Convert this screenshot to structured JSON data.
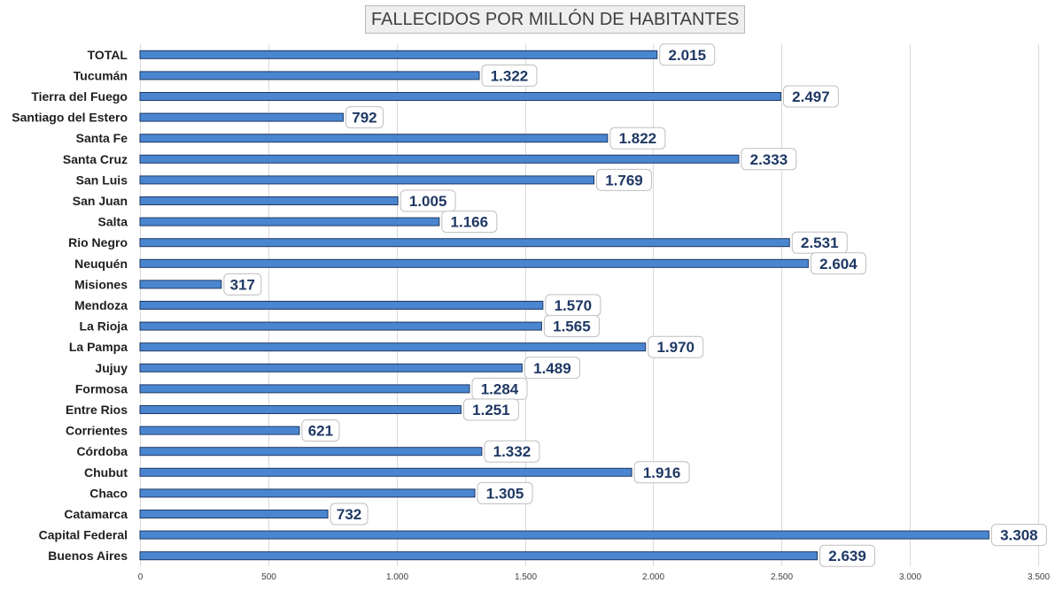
{
  "chart_data": {
    "type": "bar",
    "orientation": "horizontal",
    "title": "FALLECIDOS POR MILLÓN DE HABITANTES",
    "categories": [
      "TOTAL",
      "Tucumán",
      "Tierra del Fuego",
      "Santiago del Estero",
      "Santa Fe",
      "Santa Cruz",
      "San Luis",
      "San Juan",
      "Salta",
      "Rio Negro",
      "Neuquén",
      "Misiones",
      "Mendoza",
      "La Rioja",
      "La Pampa",
      "Jujuy",
      "Formosa",
      "Entre Rios",
      "Corrientes",
      "Córdoba",
      "Chubut",
      "Chaco",
      "Catamarca",
      "Capital Federal",
      "Buenos Aires"
    ],
    "values": [
      2015,
      1322,
      2497,
      792,
      1822,
      2333,
      1769,
      1005,
      1166,
      2531,
      2604,
      317,
      1570,
      1565,
      1970,
      1489,
      1284,
      1251,
      621,
      1332,
      1916,
      1305,
      732,
      3308,
      2639
    ],
    "value_labels": [
      "2.015",
      "1.322",
      "2.497",
      "792",
      "1.822",
      "2.333",
      "1.769",
      "1.005",
      "1.166",
      "2.531",
      "2.604",
      "317",
      "1.570",
      "1.565",
      "1.970",
      "1.489",
      "1.284",
      "1.251",
      "621",
      "1.332",
      "1.916",
      "1.305",
      "732",
      "3.308",
      "2.639"
    ],
    "xlim": [
      0,
      3500
    ],
    "xticks": [
      0,
      500,
      1000,
      1500,
      2000,
      2500,
      3000,
      3500
    ],
    "xtick_labels": [
      "0",
      "500",
      "1.000",
      "1.500",
      "2.000",
      "2.500",
      "3.000",
      "3.500"
    ],
    "xlabel": "",
    "ylabel": "",
    "grid": true,
    "legend": "none",
    "bar_color": "#4a86d0",
    "bar_edge_color": "#1f3864",
    "label_color": "#1f3864"
  }
}
